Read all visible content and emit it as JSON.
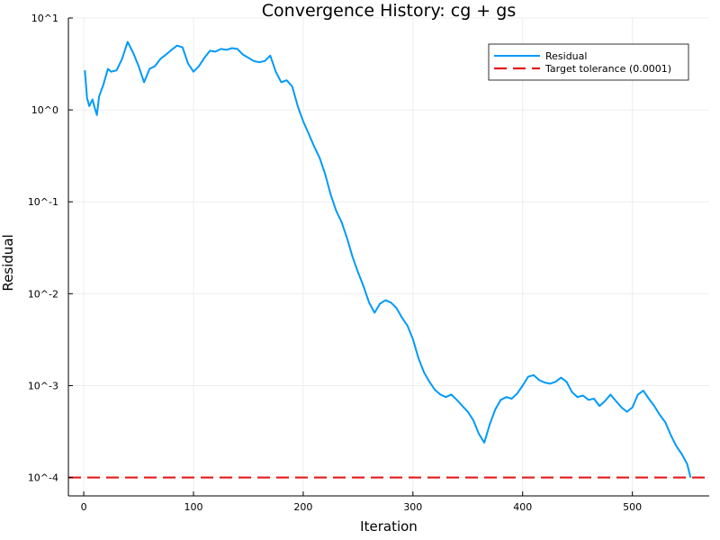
{
  "chart_data": {
    "type": "line",
    "title": "Convergence History: cg + gs",
    "xlabel": "Iteration",
    "ylabel": "Residual",
    "xlim": [
      -14,
      570
    ],
    "ylim_log10": [
      -4.2,
      1.0
    ],
    "yscale": "log",
    "grid": true,
    "legend_position": "top-right",
    "x_ticks": [
      0,
      100,
      200,
      300,
      400,
      500
    ],
    "x_tick_labels": [
      "0",
      "100",
      "200",
      "300",
      "400",
      "500"
    ],
    "y_ticks_log10": [
      1,
      0,
      -1,
      -2,
      -3,
      -4
    ],
    "y_tick_labels": [
      "10^1",
      "10^0",
      "10^-1",
      "10^-2",
      "10^-3",
      "10^-4"
    ],
    "colors": {
      "residual": "#009AFA",
      "target": "#E41A1C",
      "grid": "#EDEDED",
      "axis": "#000000"
    },
    "series": [
      {
        "name": "Residual",
        "style": "solid",
        "x": [
          1,
          3,
          5,
          8,
          10,
          12,
          14,
          18,
          22,
          25,
          30,
          35,
          40,
          45,
          50,
          55,
          60,
          65,
          70,
          75,
          80,
          85,
          90,
          95,
          100,
          105,
          110,
          115,
          120,
          125,
          130,
          135,
          140,
          145,
          150,
          155,
          160,
          165,
          170,
          175,
          180,
          185,
          190,
          195,
          200,
          205,
          210,
          215,
          220,
          225,
          230,
          235,
          240,
          245,
          250,
          255,
          260,
          265,
          270,
          275,
          280,
          285,
          290,
          295,
          300,
          305,
          310,
          315,
          320,
          325,
          330,
          335,
          340,
          345,
          350,
          355,
          360,
          365,
          370,
          375,
          380,
          385,
          390,
          395,
          400,
          405,
          410,
          415,
          420,
          425,
          430,
          435,
          440,
          445,
          450,
          455,
          460,
          465,
          470,
          475,
          480,
          485,
          490,
          495,
          500,
          505,
          510,
          515,
          520,
          525,
          530,
          535,
          540,
          545,
          550,
          553
        ],
        "y": [
          2.7,
          1.35,
          1.1,
          1.3,
          1.05,
          0.88,
          1.4,
          1.9,
          2.8,
          2.6,
          2.7,
          3.6,
          5.5,
          4.2,
          3.0,
          2.0,
          2.8,
          3.0,
          3.6,
          4.0,
          4.5,
          5.0,
          4.8,
          3.2,
          2.6,
          3.0,
          3.7,
          4.4,
          4.3,
          4.6,
          4.5,
          4.7,
          4.6,
          4.0,
          3.7,
          3.4,
          3.3,
          3.4,
          3.9,
          2.6,
          2.0,
          2.1,
          1.8,
          1.1,
          0.75,
          0.55,
          0.4,
          0.3,
          0.2,
          0.12,
          0.08,
          0.06,
          0.04,
          0.025,
          0.017,
          0.012,
          0.008,
          0.0062,
          0.0078,
          0.0085,
          0.008,
          0.007,
          0.0055,
          0.0045,
          0.0032,
          0.002,
          0.0014,
          0.0011,
          0.0009,
          0.0008,
          0.00075,
          0.0008,
          0.0007,
          0.0006,
          0.00052,
          0.00042,
          0.0003,
          0.00024,
          0.00038,
          0.00055,
          0.0007,
          0.00075,
          0.00072,
          0.00082,
          0.001,
          0.00125,
          0.0013,
          0.00115,
          0.00108,
          0.00105,
          0.0011,
          0.00122,
          0.0011,
          0.00085,
          0.00075,
          0.00078,
          0.0007,
          0.00072,
          0.0006,
          0.00068,
          0.0008,
          0.00068,
          0.00058,
          0.00052,
          0.00058,
          0.0008,
          0.00088,
          0.00072,
          0.0006,
          0.00048,
          0.0004,
          0.00029,
          0.00022,
          0.00018,
          0.00014,
          0.0001
        ]
      },
      {
        "name": "Target tolerance (0.0001)",
        "style": "dashed",
        "constant_y": 0.0001
      }
    ]
  }
}
